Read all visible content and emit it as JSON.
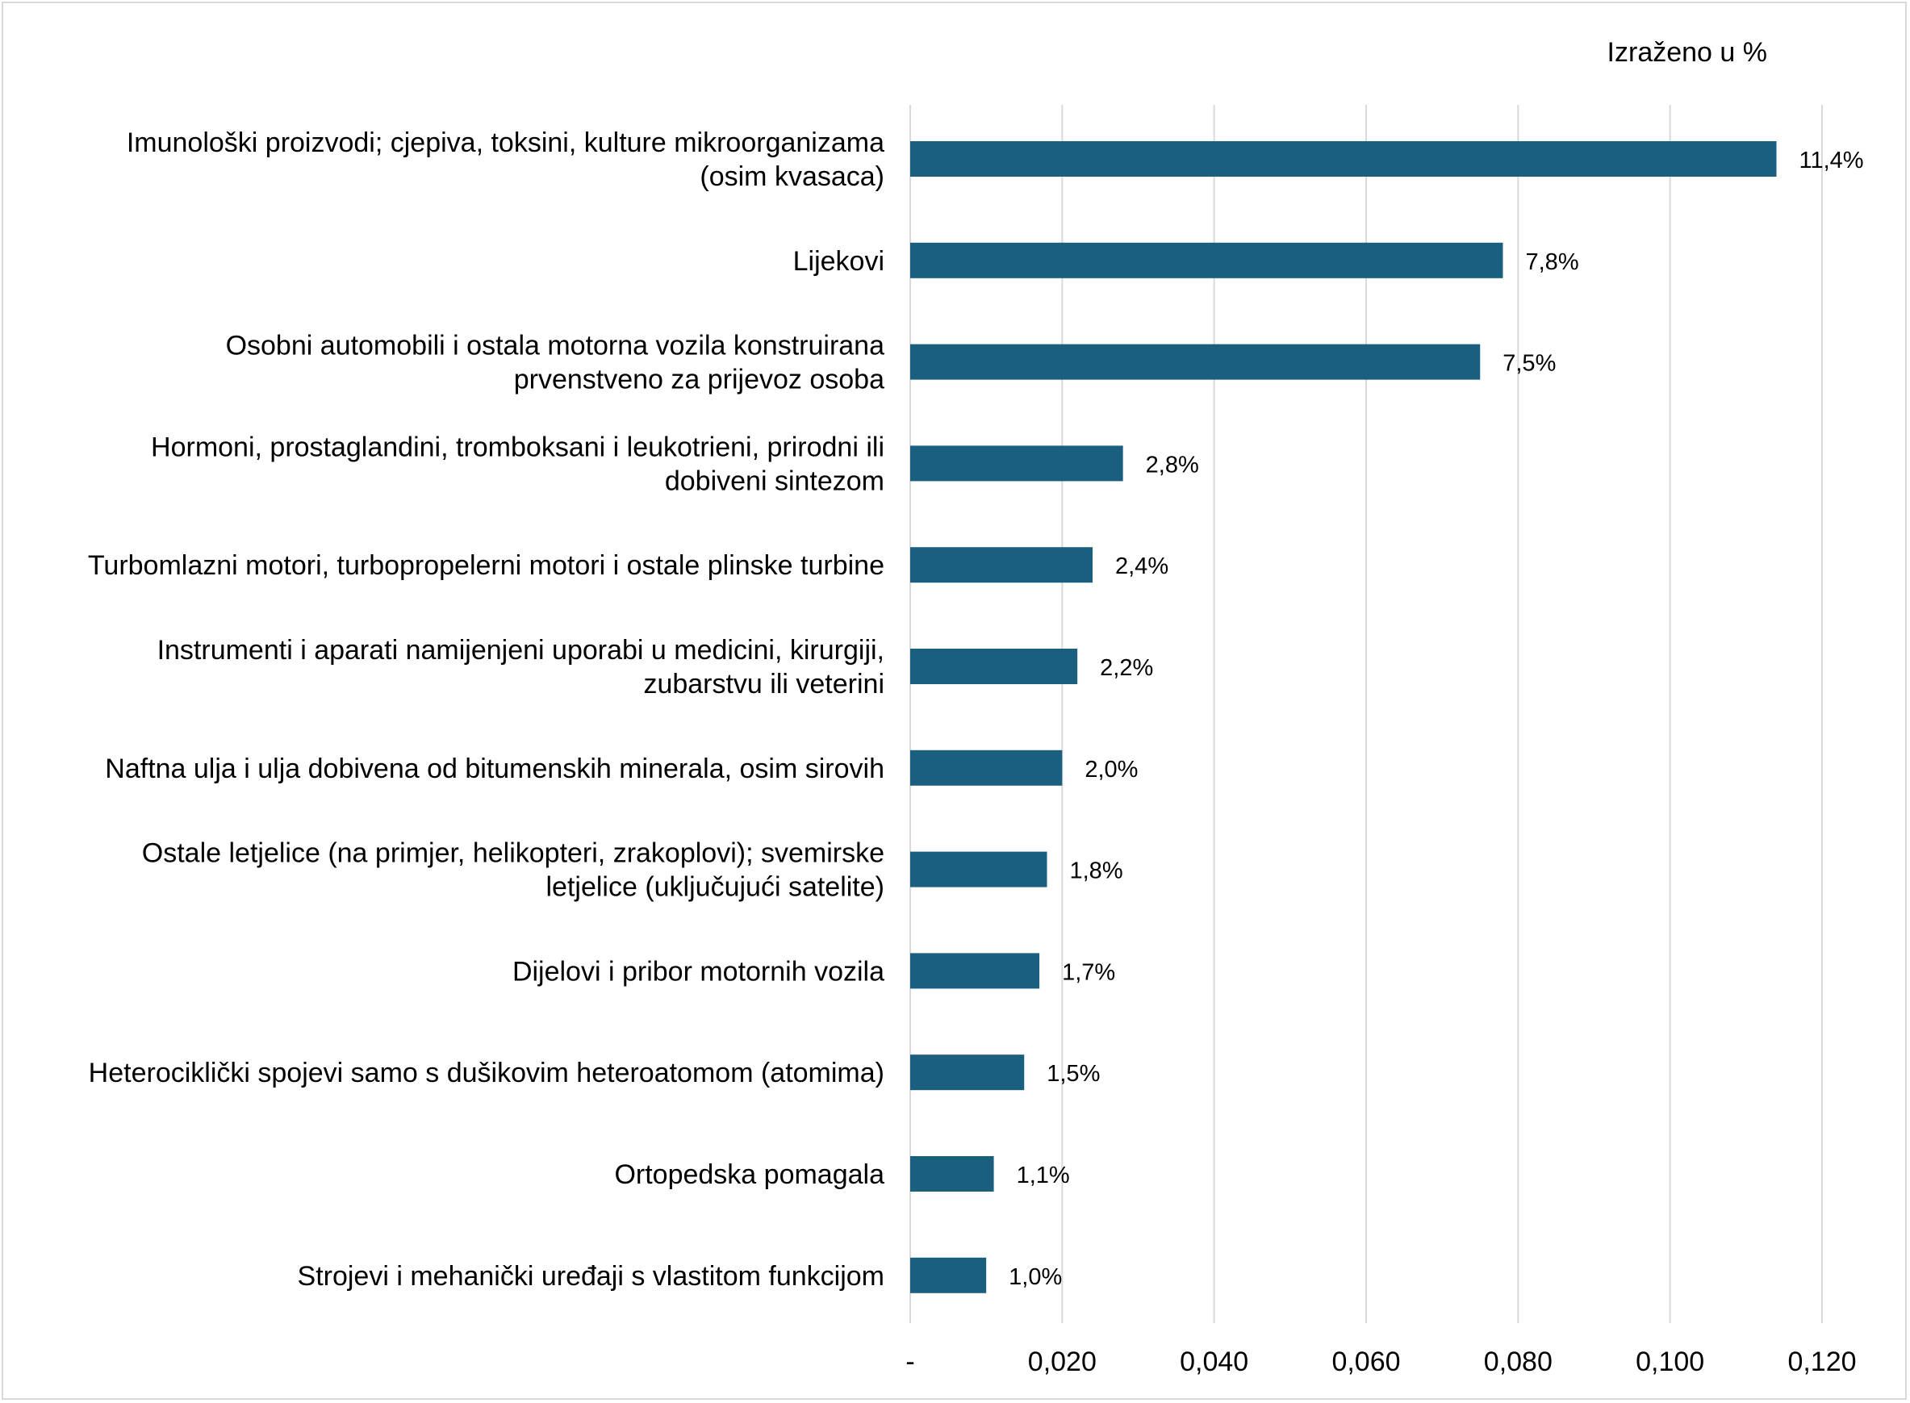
{
  "chart_data": {
    "type": "bar",
    "orientation": "horizontal",
    "unit_note": "Izraženo u %",
    "bar_color": "#1b5f7f",
    "grid": true,
    "xlim": [
      0,
      0.12
    ],
    "x_ticks": [
      0,
      0.02,
      0.04,
      0.06,
      0.08,
      0.1,
      0.12
    ],
    "x_tick_labels": [
      "-",
      "0,020",
      "0,040",
      "0,060",
      "0,080",
      "0,100",
      "0,120"
    ],
    "categories": [
      [
        "Imunološki proizvodi; cjepiva, toksini, kulture mikroorganizama",
        "(osim kvasaca)"
      ],
      [
        "Lijekovi"
      ],
      [
        "Osobni automobili i ostala motorna vozila konstruirana",
        "prvenstveno za prijevoz osoba"
      ],
      [
        "Hormoni, prostaglandini, tromboksani i leukotrieni, prirodni ili",
        "dobiveni sintezom"
      ],
      [
        "Turbomlazni motori, turbopropelerni motori i ostale plinske turbine"
      ],
      [
        "Instrumenti i aparati namijenjeni uporabi u medicini, kirurgiji,",
        "zubarstvu ili veterini"
      ],
      [
        "Naftna ulja i ulja dobivena od bitumenskih minerala, osim sirovih"
      ],
      [
        "Ostale letjelice (na primjer, helikopteri, zrakoplovi); svemirske",
        "letjelice (uključujući satelite)"
      ],
      [
        "Dijelovi i pribor motornih vozila"
      ],
      [
        "Heterociklički spojevi samo s dušikovim heteroatomom (atomima)"
      ],
      [
        "Ortopedska pomagala"
      ],
      [
        "Strojevi i mehanički uređaji s vlastitom funkcijom"
      ]
    ],
    "values": [
      0.114,
      0.078,
      0.075,
      0.028,
      0.024,
      0.022,
      0.02,
      0.018,
      0.017,
      0.015,
      0.011,
      0.01
    ],
    "data_labels": [
      "11,4%",
      "7,8%",
      "7,5%",
      "2,8%",
      "2,4%",
      "2,2%",
      "2,0%",
      "1,8%",
      "1,7%",
      "1,5%",
      "1,1%",
      "1,0%"
    ]
  }
}
